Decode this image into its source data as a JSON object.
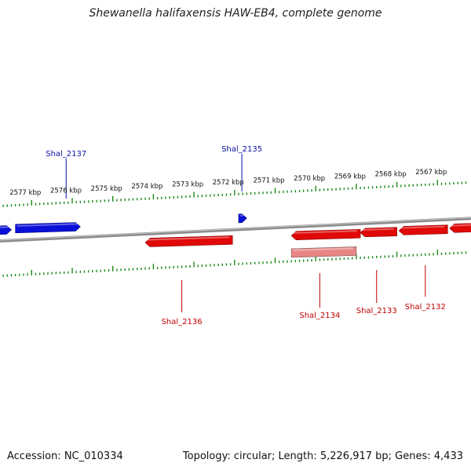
{
  "title": "Shewanella halifaxensis HAW-EB4, complete genome",
  "footer": {
    "accession": "Accession: NC_010334",
    "summary": "Topology: circular; Length: 5,226,917 bp; Genes: 4,433"
  },
  "colors": {
    "forward_gene": "#0a10d8",
    "reverse_gene": "#e00808",
    "pseudo_gene": "#e88585",
    "backbone": "#8c8c8c",
    "ticks": "#1a8a1a",
    "forward_label": "#0a10a0",
    "reverse_label": "#c00000"
  },
  "scale_labels": [
    {
      "text": "2577 kbp",
      "kbp": 2577
    },
    {
      "text": "2576 kbp",
      "kbp": 2576
    },
    {
      "text": "2575 kbp",
      "kbp": 2575
    },
    {
      "text": "2574 kbp",
      "kbp": 2574
    },
    {
      "text": "2573 kbp",
      "kbp": 2573
    },
    {
      "text": "2572 kbp",
      "kbp": 2572
    },
    {
      "text": "2571 kbp",
      "kbp": 2571
    },
    {
      "text": "2570 kbp",
      "kbp": 2570
    },
    {
      "text": "2569 kbp",
      "kbp": 2569
    },
    {
      "text": "2568 kbp",
      "kbp": 2568
    },
    {
      "text": "2567 kbp",
      "kbp": 2567
    }
  ],
  "genes": [
    {
      "strand": "forward",
      "start_kbp": 2578.6,
      "end_kbp": 2577.5,
      "label": ""
    },
    {
      "strand": "forward",
      "start_kbp": 2577.4,
      "end_kbp": 2575.8,
      "label": "Shal_2137",
      "label_at_kbp": 2576.15
    },
    {
      "strand": "forward",
      "start_kbp": 2571.9,
      "end_kbp": 2571.7,
      "label": "Shal_2135",
      "label_at_kbp": 2571.82
    },
    {
      "strand": "reverse",
      "start_kbp": 2572.05,
      "end_kbp": 2574.2,
      "label": "Shal_2136",
      "label_at_kbp": 2573.3
    },
    {
      "strand": "reverse",
      "start_kbp": 2568.9,
      "end_kbp": 2570.6,
      "label": "Shal_2134",
      "label_at_kbp": 2569.9
    },
    {
      "strand": "reverse",
      "start_kbp": 2568.0,
      "end_kbp": 2568.9,
      "label": "Shal_2133",
      "label_at_kbp": 2568.5
    },
    {
      "strand": "reverse",
      "start_kbp": 2566.75,
      "end_kbp": 2567.95,
      "label": "Shal_2132",
      "label_at_kbp": 2567.3
    },
    {
      "strand": "reverse",
      "start_kbp": 2565.5,
      "end_kbp": 2566.7,
      "label": ""
    },
    {
      "strand": "pseudo",
      "start_kbp": 2569.0,
      "end_kbp": 2570.6,
      "label": ""
    }
  ]
}
